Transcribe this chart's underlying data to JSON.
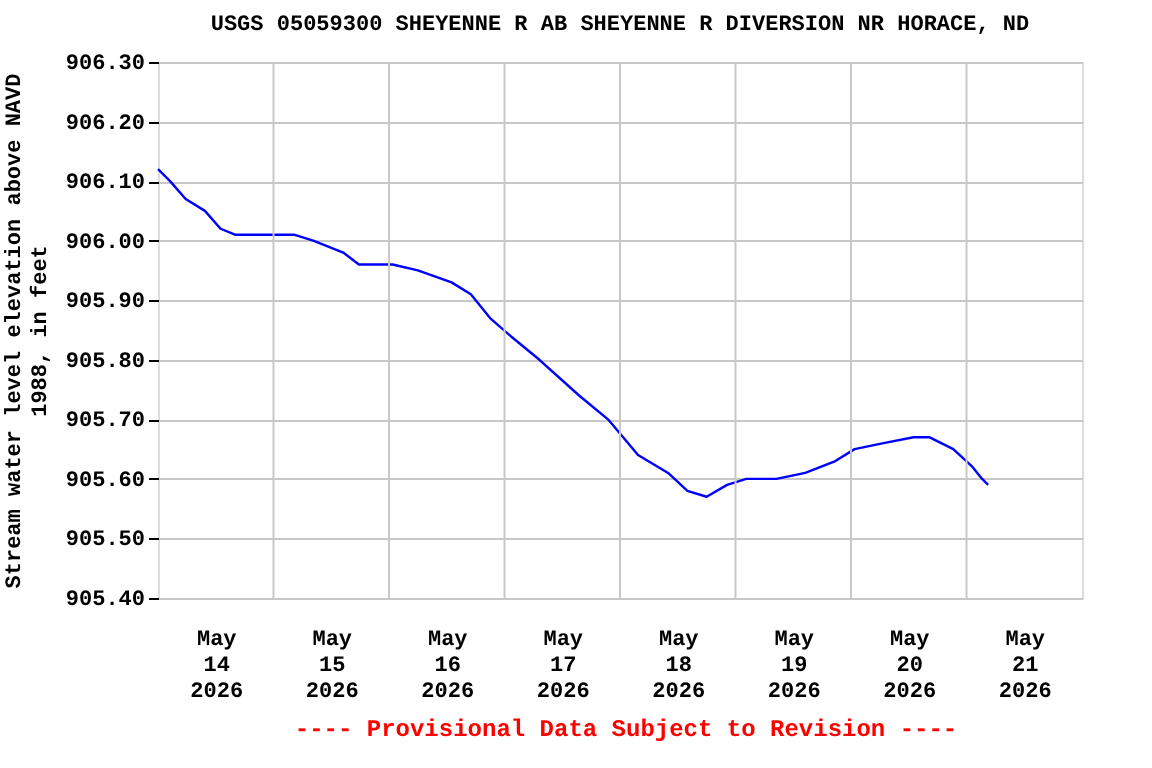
{
  "chart_data": {
    "type": "line",
    "title": "USGS 05059300 SHEYENNE R AB SHEYENNE R DIVERSION NR HORACE, ND",
    "ylabel": "Stream water level elevation above NAVD 1988, in feet",
    "x": [
      "2026-05-14T00:00",
      "2026-05-14T02:30",
      "2026-05-14T05:45",
      "2026-05-14T09:45",
      "2026-05-14T13:00",
      "2026-05-14T16:00",
      "2026-05-15T04:15",
      "2026-05-15T08:15",
      "2026-05-15T14:30",
      "2026-05-15T17:45",
      "2026-05-16T00:45",
      "2026-05-16T06:00",
      "2026-05-16T13:00",
      "2026-05-16T17:00",
      "2026-05-16T21:00",
      "2026-05-17T01:15",
      "2026-05-17T07:15",
      "2026-05-17T15:30",
      "2026-05-17T21:30",
      "2026-05-18T03:45",
      "2026-05-18T10:00",
      "2026-05-18T14:00",
      "2026-05-18T18:00",
      "2026-05-18T22:15",
      "2026-05-19T02:15",
      "2026-05-19T08:30",
      "2026-05-19T14:30",
      "2026-05-19T20:45",
      "2026-05-20T00:45",
      "2026-05-20T06:45",
      "2026-05-20T13:00",
      "2026-05-20T16:15",
      "2026-05-20T21:15",
      "2026-05-21T01:15",
      "2026-05-21T03:15",
      "2026-05-21T04:30"
    ],
    "series": [
      {
        "color": "#0000ff",
        "values": [
          906.12,
          906.1,
          906.07,
          906.05,
          906.02,
          906.01,
          906.01,
          906.0,
          905.98,
          905.96,
          905.96,
          905.95,
          905.93,
          905.91,
          905.87,
          905.84,
          905.8,
          905.74,
          905.7,
          905.64,
          905.61,
          905.58,
          905.57,
          905.59,
          905.6,
          905.6,
          905.61,
          905.63,
          905.65,
          905.66,
          905.67,
          905.67,
          905.65,
          905.62,
          905.6,
          905.59
        ]
      }
    ],
    "xlim": [
      "2026-05-14T00:00",
      "2026-05-22T00:00"
    ],
    "xticks": [
      {
        "value": "2026-05-14T12:00",
        "label": "May 14 2026"
      },
      {
        "value": "2026-05-15T00:00",
        "label": null
      },
      {
        "value": "2026-05-15T12:00",
        "label": "May 15 2026"
      },
      {
        "value": "2026-05-16T00:00",
        "label": null
      },
      {
        "value": "2026-05-16T12:00",
        "label": "May 16 2026"
      },
      {
        "value": "2026-05-17T00:00",
        "label": null
      },
      {
        "value": "2026-05-17T12:00",
        "label": "May 17 2026"
      },
      {
        "value": "2026-05-18T00:00",
        "label": null
      },
      {
        "value": "2026-05-18T12:00",
        "label": "May 18 2026"
      },
      {
        "value": "2026-05-19T00:00",
        "label": null
      },
      {
        "value": "2026-05-19T12:00",
        "label": "May 19 2026"
      },
      {
        "value": "2026-05-20T00:00",
        "label": null
      },
      {
        "value": "2026-05-20T12:00",
        "label": "May 20 2026"
      },
      {
        "value": "2026-05-21T00:00",
        "label": null
      },
      {
        "value": "2026-05-21T12:00",
        "label": "May 21 2026"
      }
    ],
    "ylim": [
      905.4,
      906.3
    ],
    "yticks": [
      {
        "value": 905.4,
        "label": "905.40"
      },
      {
        "value": 905.5,
        "label": "905.50"
      },
      {
        "value": 905.6,
        "label": "905.60"
      },
      {
        "value": 905.7,
        "label": "905.70"
      },
      {
        "value": 905.8,
        "label": "905.80"
      },
      {
        "value": 905.9,
        "label": "905.90"
      },
      {
        "value": 906.0,
        "label": "906.00"
      },
      {
        "value": 906.1,
        "label": "906.10"
      },
      {
        "value": 906.2,
        "label": "906.20"
      },
      {
        "value": 906.3,
        "label": "906.30"
      }
    ],
    "grid": true,
    "line_style": "solid",
    "marker": "none",
    "annotations": [
      "---- Provisional Data Subject to Revision ----"
    ]
  }
}
